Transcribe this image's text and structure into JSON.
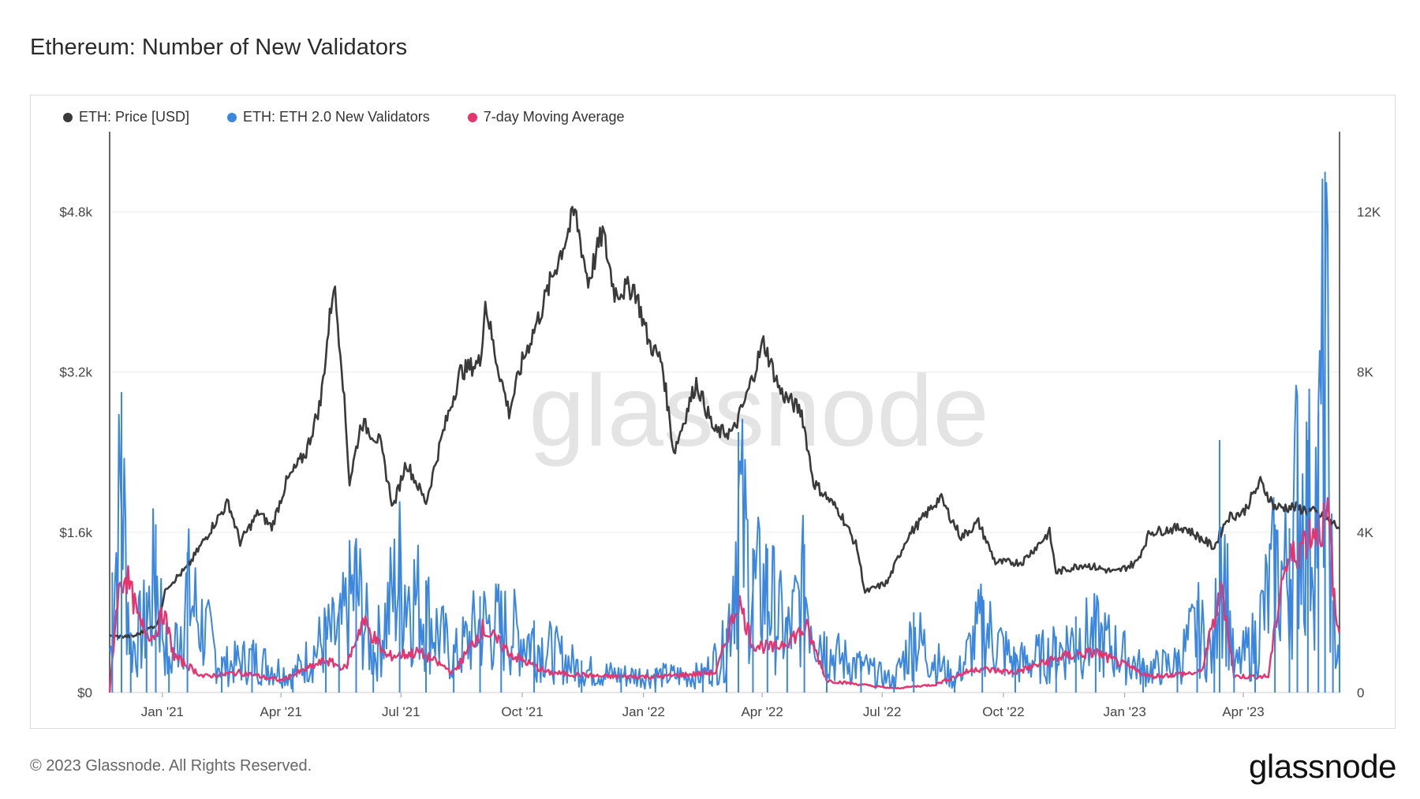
{
  "title": "Ethereum: Number of New Validators",
  "watermark": "glassnode",
  "footer": "© 2023 Glassnode. All Rights Reserved.",
  "brand": "glassnode",
  "legend": [
    {
      "label": "ETH: Price [USD]",
      "color": "#3a3a3a"
    },
    {
      "label": "ETH: ETH 2.0 New Validators",
      "color": "#3b86de"
    },
    {
      "label": "7-day Moving Average",
      "color": "#e8336d"
    }
  ],
  "chart_data": {
    "type": "line",
    "title": "Ethereum: Number of New Validators",
    "grid": true,
    "legend_position": "top-left",
    "x_ticks": [
      "Jan '21",
      "Apr '21",
      "Jul '21",
      "Oct '21",
      "Jan '22",
      "Apr '22",
      "Jul '22",
      "Oct '22",
      "Jan '23",
      "Apr '23"
    ],
    "x_range": [
      "2020-11-22",
      "2023-06-13"
    ],
    "y_left": {
      "label": "",
      "ticks": [
        "$0",
        "$1.6k",
        "$3.2k",
        "$4.8k"
      ],
      "range": [
        0,
        5600
      ]
    },
    "y_right": {
      "label": "",
      "ticks": [
        "0",
        "4K",
        "8K",
        "12K"
      ],
      "range": [
        0,
        14000
      ]
    },
    "series": [
      {
        "name": "ETH: Price [USD]",
        "axis": "left",
        "color": "#3a3a3a",
        "points": [
          [
            "2020-11-22",
            560
          ],
          [
            "2020-12-10",
            560
          ],
          [
            "2020-12-28",
            680
          ],
          [
            "2021-01-04",
            1050
          ],
          [
            "2021-01-20",
            1250
          ],
          [
            "2021-02-10",
            1700
          ],
          [
            "2021-02-20",
            1900
          ],
          [
            "2021-03-01",
            1500
          ],
          [
            "2021-03-15",
            1800
          ],
          [
            "2021-03-25",
            1650
          ],
          [
            "2021-04-05",
            2100
          ],
          [
            "2021-04-20",
            2400
          ],
          [
            "2021-05-01",
            2900
          ],
          [
            "2021-05-11",
            4100
          ],
          [
            "2021-05-17",
            3300
          ],
          [
            "2021-05-23",
            2100
          ],
          [
            "2021-06-01",
            2700
          ],
          [
            "2021-06-15",
            2500
          ],
          [
            "2021-06-25",
            1850
          ],
          [
            "2021-07-05",
            2300
          ],
          [
            "2021-07-20",
            1900
          ],
          [
            "2021-08-01",
            2550
          ],
          [
            "2021-08-15",
            3200
          ],
          [
            "2021-08-30",
            3300
          ],
          [
            "2021-09-03",
            3900
          ],
          [
            "2021-09-10",
            3400
          ],
          [
            "2021-09-21",
            2800
          ],
          [
            "2021-10-01",
            3300
          ],
          [
            "2021-10-15",
            3800
          ],
          [
            "2021-10-25",
            4200
          ],
          [
            "2021-11-10",
            4800
          ],
          [
            "2021-11-20",
            4100
          ],
          [
            "2021-12-01",
            4600
          ],
          [
            "2021-12-10",
            4000
          ],
          [
            "2021-12-25",
            4050
          ],
          [
            "2022-01-05",
            3500
          ],
          [
            "2022-01-15",
            3300
          ],
          [
            "2022-01-24",
            2400
          ],
          [
            "2022-02-10",
            3100
          ],
          [
            "2022-02-24",
            2600
          ],
          [
            "2022-03-10",
            2600
          ],
          [
            "2022-03-20",
            2950
          ],
          [
            "2022-04-02",
            3500
          ],
          [
            "2022-04-15",
            3000
          ],
          [
            "2022-05-01",
            2800
          ],
          [
            "2022-05-10",
            2100
          ],
          [
            "2022-05-30",
            1800
          ],
          [
            "2022-06-12",
            1450
          ],
          [
            "2022-06-18",
            1000
          ],
          [
            "2022-07-05",
            1100
          ],
          [
            "2022-07-20",
            1550
          ],
          [
            "2022-08-14",
            1950
          ],
          [
            "2022-08-30",
            1550
          ],
          [
            "2022-09-12",
            1700
          ],
          [
            "2022-09-25",
            1300
          ],
          [
            "2022-10-15",
            1300
          ],
          [
            "2022-11-05",
            1600
          ],
          [
            "2022-11-10",
            1200
          ],
          [
            "2022-12-01",
            1280
          ],
          [
            "2022-12-25",
            1200
          ],
          [
            "2023-01-10",
            1300
          ],
          [
            "2023-01-20",
            1600
          ],
          [
            "2023-02-15",
            1650
          ],
          [
            "2023-03-10",
            1450
          ],
          [
            "2023-03-20",
            1750
          ],
          [
            "2023-04-01",
            1800
          ],
          [
            "2023-04-14",
            2100
          ],
          [
            "2023-04-25",
            1850
          ],
          [
            "2023-05-10",
            1850
          ],
          [
            "2023-05-25",
            1800
          ],
          [
            "2023-06-13",
            1650
          ]
        ]
      },
      {
        "name": "ETH: ETH 2.0 New Validators",
        "axis": "right",
        "color": "#3b86de",
        "points": [
          [
            "2020-11-24",
            3000
          ],
          [
            "2020-12-01",
            7500
          ],
          [
            "2020-12-08",
            1500
          ],
          [
            "2020-12-20",
            2500
          ],
          [
            "2020-12-27",
            4200
          ],
          [
            "2021-01-06",
            800
          ],
          [
            "2021-01-20",
            3500
          ],
          [
            "2021-02-15",
            900
          ],
          [
            "2021-03-10",
            1200
          ],
          [
            "2021-04-10",
            600
          ],
          [
            "2021-05-05",
            1900
          ],
          [
            "2021-05-15",
            2000
          ],
          [
            "2021-05-28",
            3800
          ],
          [
            "2021-06-10",
            1200
          ],
          [
            "2021-06-30",
            4200
          ],
          [
            "2021-07-20",
            2800
          ],
          [
            "2021-08-10",
            1200
          ],
          [
            "2021-08-30",
            2400
          ],
          [
            "2021-09-15",
            2300
          ],
          [
            "2021-10-10",
            1800
          ],
          [
            "2021-11-15",
            800
          ],
          [
            "2021-12-15",
            600
          ],
          [
            "2022-01-10",
            600
          ],
          [
            "2022-02-15",
            600
          ],
          [
            "2022-03-05",
            1600
          ],
          [
            "2022-03-14",
            6500
          ],
          [
            "2022-03-25",
            3600
          ],
          [
            "2022-04-05",
            3600
          ],
          [
            "2022-04-20",
            1900
          ],
          [
            "2022-05-03",
            3700
          ],
          [
            "2022-05-20",
            1400
          ],
          [
            "2022-06-15",
            900
          ],
          [
            "2022-07-10",
            400
          ],
          [
            "2022-07-25",
            2000
          ],
          [
            "2022-08-25",
            400
          ],
          [
            "2022-09-15",
            2400
          ],
          [
            "2022-10-10",
            1000
          ],
          [
            "2022-11-10",
            1400
          ],
          [
            "2022-11-25",
            1900
          ],
          [
            "2022-12-10",
            2000
          ],
          [
            "2023-01-15",
            800
          ],
          [
            "2023-02-10",
            1000
          ],
          [
            "2023-02-25",
            2300
          ],
          [
            "2023-03-10",
            1200
          ],
          [
            "2023-03-14",
            6300
          ],
          [
            "2023-03-25",
            800
          ],
          [
            "2023-04-10",
            1800
          ],
          [
            "2023-04-25",
            4200
          ],
          [
            "2023-05-06",
            4100
          ],
          [
            "2023-05-12",
            7200
          ],
          [
            "2023-05-20",
            6300
          ],
          [
            "2023-05-28",
            7000
          ],
          [
            "2023-06-02",
            13000
          ],
          [
            "2023-06-08",
            2300
          ],
          [
            "2023-06-13",
            1500
          ]
        ]
      },
      {
        "name": "7-day Moving Average",
        "axis": "right",
        "color": "#e8336d",
        "points": [
          [
            "2020-11-22",
            0
          ],
          [
            "2020-11-28",
            2400
          ],
          [
            "2020-12-04",
            3000
          ],
          [
            "2020-12-15",
            1700
          ],
          [
            "2020-12-25",
            1400
          ],
          [
            "2021-01-02",
            2000
          ],
          [
            "2021-01-10",
            900
          ],
          [
            "2021-02-01",
            400
          ],
          [
            "2021-03-01",
            500
          ],
          [
            "2021-04-01",
            300
          ],
          [
            "2021-05-05",
            800
          ],
          [
            "2021-05-20",
            600
          ],
          [
            "2021-06-02",
            1800
          ],
          [
            "2021-06-20",
            900
          ],
          [
            "2021-07-15",
            1000
          ],
          [
            "2021-08-10",
            500
          ],
          [
            "2021-09-01",
            1600
          ],
          [
            "2021-09-25",
            900
          ],
          [
            "2021-10-20",
            500
          ],
          [
            "2021-12-01",
            400
          ],
          [
            "2022-01-15",
            400
          ],
          [
            "2022-02-25",
            500
          ],
          [
            "2022-03-14",
            2300
          ],
          [
            "2022-03-25",
            1200
          ],
          [
            "2022-04-10",
            1100
          ],
          [
            "2022-05-05",
            1600
          ],
          [
            "2022-05-20",
            300
          ],
          [
            "2022-07-10",
            100
          ],
          [
            "2022-08-10",
            200
          ],
          [
            "2022-09-10",
            600
          ],
          [
            "2022-10-10",
            500
          ],
          [
            "2022-11-15",
            900
          ],
          [
            "2022-12-10",
            1000
          ],
          [
            "2023-01-20",
            400
          ],
          [
            "2023-02-28",
            500
          ],
          [
            "2023-03-16",
            2600
          ],
          [
            "2023-03-25",
            400
          ],
          [
            "2023-04-20",
            400
          ],
          [
            "2023-05-01",
            3000
          ],
          [
            "2023-05-15",
            3700
          ],
          [
            "2023-05-25",
            4100
          ],
          [
            "2023-06-05",
            4300
          ],
          [
            "2023-06-10",
            1800
          ],
          [
            "2023-06-13",
            1500
          ]
        ]
      }
    ]
  }
}
